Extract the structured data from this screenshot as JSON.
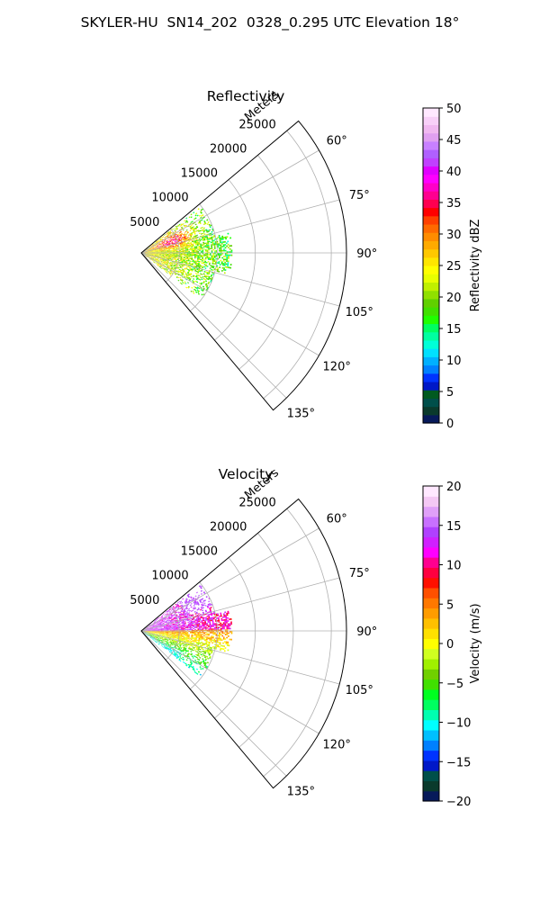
{
  "suptitle": "SKYLER-HU  SN14_202  0328_0.295 UTC Elevation 18°",
  "chart_data": [
    {
      "type": "heatmap",
      "projection": "polar-sector",
      "title": "Reflectivity",
      "radial_label": "Meters",
      "radial_ticks": [
        5000,
        10000,
        15000,
        20000,
        25000
      ],
      "radial_tick_labels": [
        "5000",
        "10000",
        "15000",
        "20000",
        "25000"
      ],
      "r_max": 27000,
      "angle_range_deg": [
        50,
        140
      ],
      "angle_ticks": [
        60,
        75,
        90,
        105,
        120,
        135
      ],
      "angle_tick_labels": [
        "60°",
        "75°",
        "90°",
        "105°",
        "120°",
        "135°"
      ],
      "grid": true,
      "colorbar": {
        "label": "Reflectivity dBZ",
        "range": [
          0,
          50
        ],
        "ticks": [
          0,
          5,
          10,
          15,
          20,
          25,
          30,
          35,
          40,
          45,
          50
        ],
        "tick_labels": [
          "0",
          "5",
          "10",
          "15",
          "20",
          "25",
          "30",
          "35",
          "40",
          "45",
          "50"
        ],
        "colors": [
          "#071a5a",
          "#0a3a2c",
          "#004f4a",
          "#005a20",
          "#0018c8",
          "#0033ff",
          "#0080ff",
          "#00b0ff",
          "#00e0ff",
          "#00ffd8",
          "#00ffa0",
          "#00ff60",
          "#20ff00",
          "#40e000",
          "#60d000",
          "#90e000",
          "#c0f000",
          "#e8ff00",
          "#ffff00",
          "#ffe600",
          "#ffc800",
          "#ffaa00",
          "#ff8c00",
          "#ff6a00",
          "#ff4000",
          "#ff0000",
          "#ff0050",
          "#ff0090",
          "#ff00c8",
          "#ff00ff",
          "#e000ff",
          "#c040ff",
          "#b060ff",
          "#c880ff",
          "#e0a0f0",
          "#f0b8f0",
          "#f8d0f8",
          "#ffe8ff"
        ]
      },
      "observed_range_m": 12000,
      "observed_angle_deg": [
        52,
        128
      ],
      "typical_value_range": [
        15,
        38
      ],
      "echo_pattern": "core"
    },
    {
      "type": "heatmap",
      "projection": "polar-sector",
      "title": "Velocity",
      "radial_label": "Meters",
      "radial_ticks": [
        5000,
        10000,
        15000,
        20000,
        25000
      ],
      "radial_tick_labels": [
        "5000",
        "10000",
        "15000",
        "20000",
        "25000"
      ],
      "r_max": 27000,
      "angle_range_deg": [
        50,
        140
      ],
      "angle_ticks": [
        60,
        75,
        90,
        105,
        120,
        135
      ],
      "angle_tick_labels": [
        "60°",
        "75°",
        "90°",
        "105°",
        "120°",
        "135°"
      ],
      "grid": true,
      "colorbar": {
        "label": "Velocity (m/s)",
        "range": [
          -20,
          20
        ],
        "ticks": [
          -20,
          -15,
          -10,
          -5,
          0,
          5,
          10,
          15,
          20
        ],
        "tick_labels": [
          "−20",
          "−15",
          "−10",
          "−5",
          "0",
          "5",
          "10",
          "15",
          "20"
        ],
        "colors": [
          "#071a5a",
          "#0a3a2c",
          "#004f4a",
          "#0018c8",
          "#0033ff",
          "#0080ff",
          "#00c0ff",
          "#00ffff",
          "#00ffb0",
          "#00ff60",
          "#00ff20",
          "#40e000",
          "#70d000",
          "#a0f000",
          "#d0ff20",
          "#ffff00",
          "#ffe000",
          "#ffc000",
          "#ff9c00",
          "#ff7800",
          "#ff5000",
          "#ff1000",
          "#ff0040",
          "#ff0090",
          "#ff00ff",
          "#d020ff",
          "#b040ff",
          "#c870ff",
          "#e0a0f8",
          "#f4c8f4",
          "#ffe8ff"
        ]
      },
      "observed_range_m": 12000,
      "observed_angle_deg": [
        52,
        128
      ],
      "typical_value_range": [
        -12,
        16
      ],
      "echo_pattern": "velocity-split"
    }
  ]
}
